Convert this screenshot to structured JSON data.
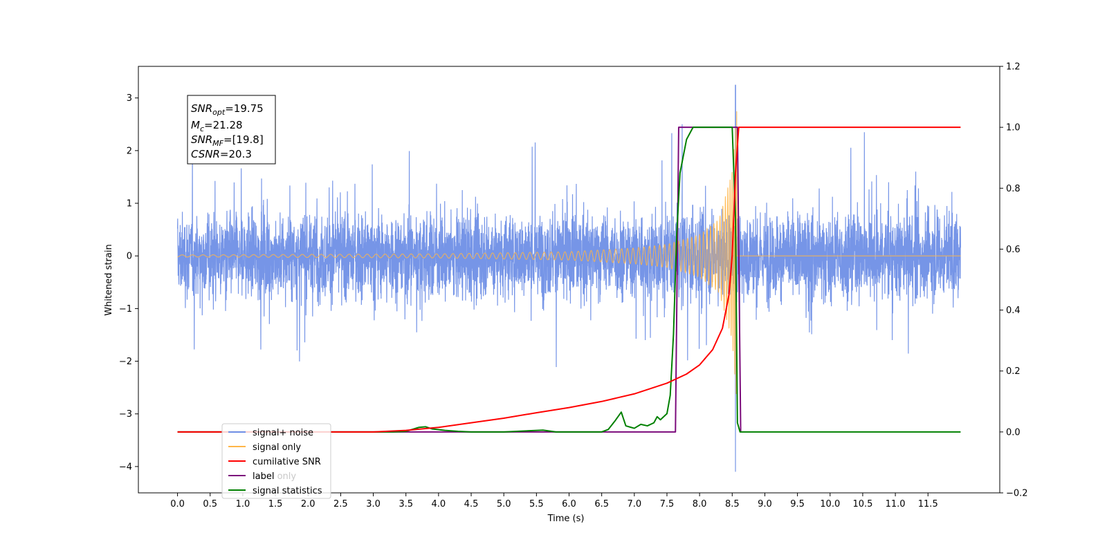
{
  "chart_data": {
    "type": "line",
    "title": "",
    "xlabel": "Time (s)",
    "ylabel": "Whitened strain",
    "xlim": [
      -0.6,
      12.6
    ],
    "ylim": [
      -4.5,
      3.6
    ],
    "y2lim": [
      -0.2,
      1.2
    ],
    "grid": false,
    "legend_position": "lower-left",
    "x_ticks": [
      "0.0",
      "0.5",
      "1.0",
      "1.5",
      "2.0",
      "2.5",
      "3.0",
      "3.5",
      "4.0",
      "4.5",
      "5.0",
      "5.5",
      "6.0",
      "6.5",
      "7.0",
      "7.5",
      "8.0",
      "8.5",
      "9.0",
      "9.5",
      "10.0",
      "10.5",
      "11.0",
      "11.5"
    ],
    "y_ticks": [
      "3",
      "2",
      "1",
      "0",
      "−1",
      "−2",
      "−3",
      "−4"
    ],
    "y_tick_values": [
      3,
      2,
      1,
      0,
      -1,
      -2,
      -3,
      -4
    ],
    "y2_ticks": [
      "1.2",
      "1.0",
      "0.8",
      "0.6",
      "0.4",
      "0.2",
      "0.0",
      "−0.2"
    ],
    "y2_tick_values": [
      1.2,
      1.0,
      0.8,
      0.6,
      0.4,
      0.2,
      0.0,
      -0.2
    ],
    "annotation": [
      {
        "base": "SNR",
        "sub": "opt",
        "rest": "=19.75"
      },
      {
        "base": "M",
        "sub": "c",
        "rest": "=21.28"
      },
      {
        "base": "SNR",
        "sub": "MF",
        "rest": "=[19.8]"
      },
      {
        "base": "CSNR",
        "sub": "",
        "rest": "=20.3"
      }
    ],
    "series": [
      {
        "name": "signal+ noise",
        "axis": "left",
        "color": "#6f8fe6",
        "noise_envelope": {
          "x": [
            0.0,
            12.0
          ],
          "typical_amplitude": 1.3,
          "peak_amplitude": 2.5,
          "spike_x": 8.55,
          "spike_range": [
            -4.1,
            3.25
          ]
        }
      },
      {
        "name": "signal only",
        "axis": "left",
        "color": "#ffb547",
        "chirp": {
          "start_x": 0.0,
          "merger_x": 8.57,
          "peak_amplitude": 2.8,
          "amplitude_at_x": [
            [
              0.0,
              0.02
            ],
            [
              4.0,
              0.04
            ],
            [
              6.0,
              0.08
            ],
            [
              7.0,
              0.15
            ],
            [
              7.5,
              0.22
            ],
            [
              8.0,
              0.4
            ],
            [
              8.3,
              0.7
            ],
            [
              8.5,
              1.6
            ],
            [
              8.57,
              2.8
            ]
          ]
        }
      },
      {
        "name": "cumilative SNR",
        "axis": "right",
        "color": "#ff0000",
        "x": [
          0.0,
          3.0,
          3.5,
          4.0,
          4.5,
          5.0,
          5.5,
          6.0,
          6.5,
          7.0,
          7.5,
          7.8,
          8.0,
          8.2,
          8.35,
          8.45,
          8.5,
          8.55,
          8.6,
          12.0
        ],
        "values": [
          0.0,
          0.0,
          0.005,
          0.015,
          0.03,
          0.045,
          0.063,
          0.08,
          0.1,
          0.125,
          0.16,
          0.19,
          0.22,
          0.27,
          0.34,
          0.45,
          0.58,
          0.85,
          1.0,
          1.0
        ]
      },
      {
        "name": "label",
        "axis": "right",
        "color": "#7b0a7b",
        "x": [
          0.0,
          7.63,
          7.68,
          8.58,
          8.63
        ],
        "values": [
          0.0,
          0.0,
          1.0,
          1.0,
          0.0
        ]
      },
      {
        "name": "label only",
        "axis": "right",
        "color": "#d0d0d0",
        "x": [],
        "values": []
      },
      {
        "name": "signal statistics",
        "axis": "right",
        "color": "#008000",
        "x": [
          0.0,
          3.3,
          3.5,
          3.7,
          3.8,
          3.9,
          4.1,
          4.3,
          4.5,
          5.0,
          5.6,
          5.8,
          6.0,
          6.5,
          6.6,
          6.7,
          6.8,
          6.87,
          6.95,
          7.0,
          7.1,
          7.2,
          7.3,
          7.35,
          7.4,
          7.5,
          7.55,
          7.6,
          7.65,
          7.7,
          7.8,
          7.9,
          8.0,
          8.3,
          8.5,
          8.55,
          8.58,
          8.62,
          12.0
        ],
        "values": [
          0.0,
          0.0,
          0.002,
          0.015,
          0.017,
          0.01,
          0.005,
          0.002,
          0.0,
          0.0,
          0.006,
          0.0,
          0.0,
          0.0,
          0.008,
          0.035,
          0.065,
          0.02,
          0.015,
          0.012,
          0.025,
          0.02,
          0.03,
          0.05,
          0.04,
          0.06,
          0.12,
          0.32,
          0.65,
          0.85,
          0.96,
          1.0,
          1.0,
          1.0,
          1.0,
          0.7,
          0.03,
          0.0,
          0.0
        ]
      }
    ]
  }
}
